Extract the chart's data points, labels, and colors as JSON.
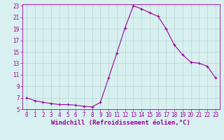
{
  "hours": [
    0,
    1,
    2,
    3,
    4,
    5,
    6,
    7,
    8,
    9,
    10,
    11,
    12,
    13,
    14,
    15,
    16,
    17,
    18,
    19,
    20,
    21,
    22,
    23
  ],
  "values": [
    7.0,
    6.5,
    6.2,
    6.0,
    5.8,
    5.8,
    5.7,
    5.5,
    5.4,
    6.2,
    10.5,
    14.8,
    19.2,
    23.0,
    22.5,
    21.8,
    21.2,
    19.0,
    16.2,
    14.5,
    13.2,
    13.0,
    12.5,
    10.5
  ],
  "line_color": "#990099",
  "marker": "+",
  "bg_color": "#d8f0f0",
  "grid_color": "#b8d4d4",
  "xlabel": "Windchill (Refroidissement éolien,°C)",
  "ylim_min": 5,
  "ylim_max": 23,
  "xlim_min": -0.5,
  "xlim_max": 23.5,
  "yticks": [
    5,
    7,
    9,
    11,
    13,
    15,
    17,
    19,
    21,
    23
  ],
  "xticks": [
    0,
    1,
    2,
    3,
    4,
    5,
    6,
    7,
    8,
    9,
    10,
    11,
    12,
    13,
    14,
    15,
    16,
    17,
    18,
    19,
    20,
    21,
    22,
    23
  ],
  "xlabel_color": "#990099",
  "tick_color": "#990099",
  "tick_fontsize": 5.5,
  "xlabel_fontsize": 6.5,
  "linewidth": 0.8,
  "markersize": 3.5,
  "markeredgewidth": 0.8
}
